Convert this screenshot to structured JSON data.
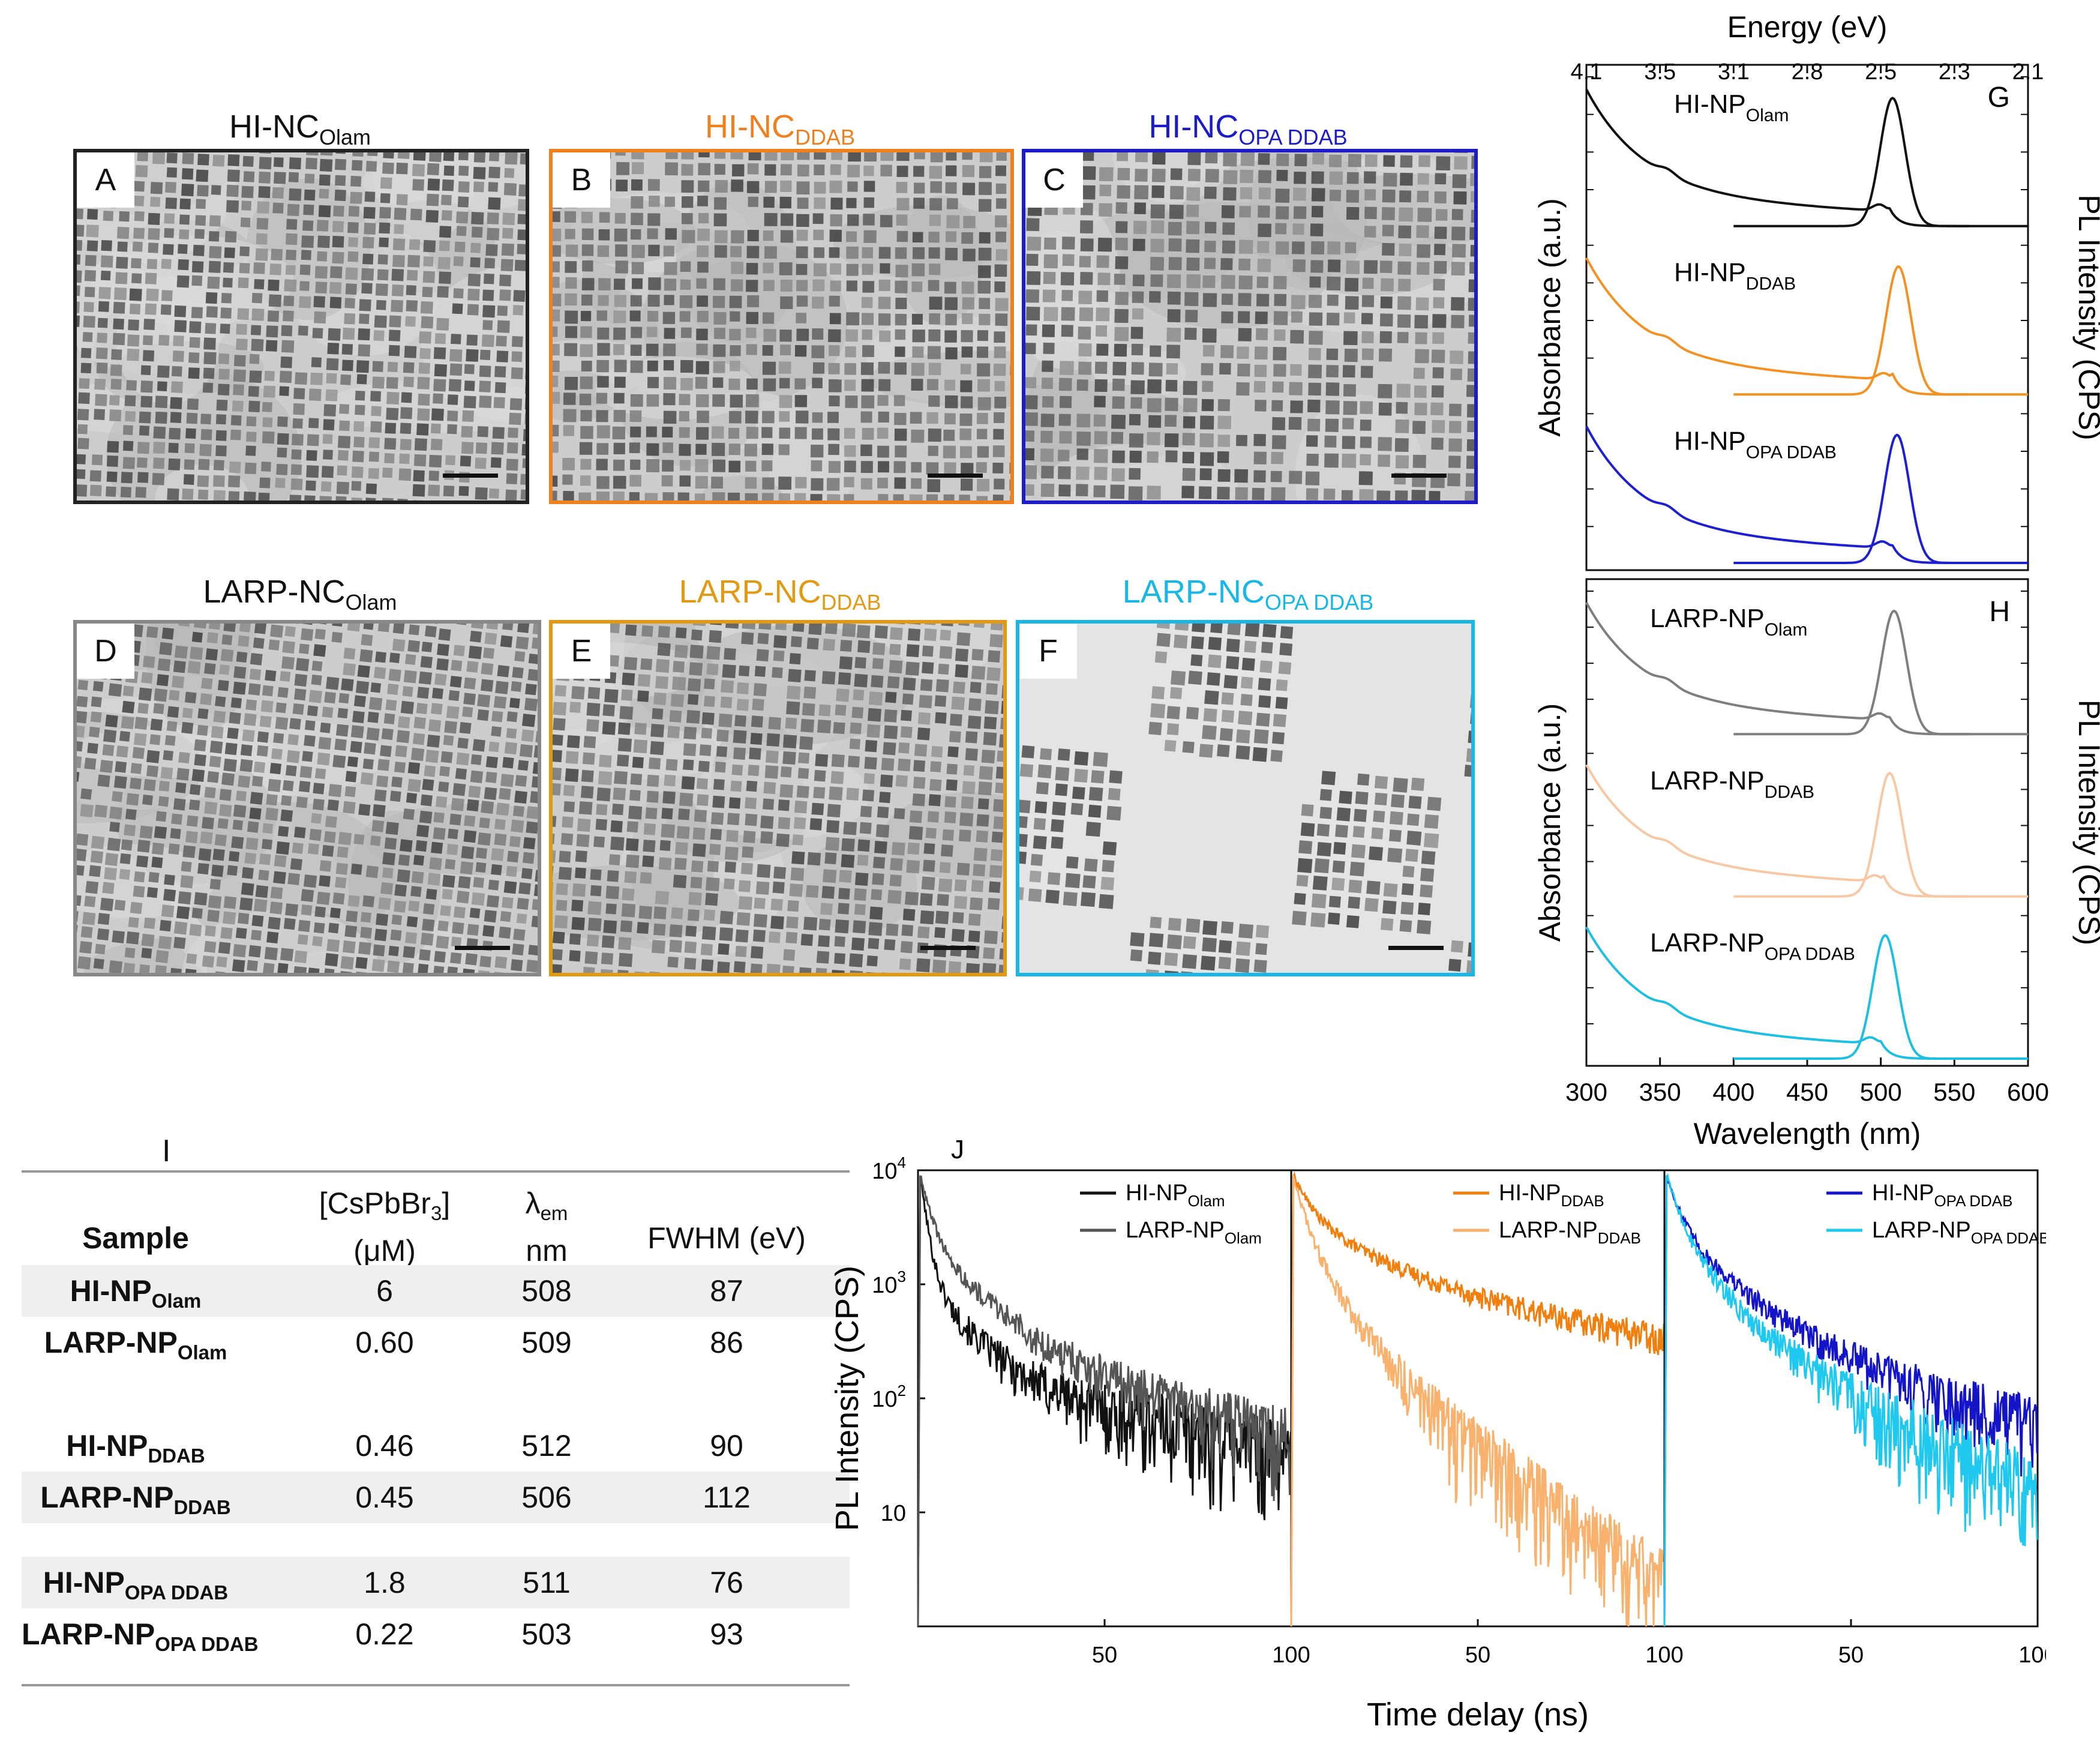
{
  "tem_panels": [
    {
      "label": "A",
      "title_main": "HI-NC",
      "title_sub": "Olam",
      "color": "#222222",
      "seed": 11
    },
    {
      "label": "B",
      "title_main": "HI-NC",
      "title_sub": "DDAB",
      "color": "#f07f1e",
      "seed": 23
    },
    {
      "label": "C",
      "title_main": "HI-NC",
      "title_sub": "OPA DDAB",
      "color": "#1c1cc8",
      "seed": 37
    },
    {
      "label": "D",
      "title_main": "LARP-NC",
      "title_sub": "Olam",
      "color": "#888888",
      "seed": 41
    },
    {
      "label": "E",
      "title_main": "LARP-NC",
      "title_sub": "DDAB",
      "color": "#e29a12",
      "seed": 53
    },
    {
      "label": "F",
      "title_main": "LARP-NC",
      "title_sub": "OPA DDAB",
      "color": "#18b7e6",
      "seed": 67
    }
  ],
  "chart_data": [
    {
      "type": "line",
      "panel": "G",
      "title": "",
      "xlabel": "Wavelength (nm)",
      "x2label": "Energy (eV)",
      "ylabel": "Absorbance (a.u.)",
      "y2label": "PL Intensity (CPS)",
      "xlim": [
        300,
        600
      ],
      "xticks": [
        300,
        350,
        400,
        450,
        500,
        550,
        600
      ],
      "energy_ticks": [
        "4.1",
        "3.5",
        "3.1",
        "2.8",
        "2.5",
        "2.3",
        "2.1"
      ],
      "series": [
        {
          "name_main": "HI-NP",
          "name_sub": "Olam",
          "color": "#111111",
          "pl_peak_nm": 508,
          "abs_edge_nm": 505
        },
        {
          "name_main": "HI-NP",
          "name_sub": "DDAB",
          "color": "#f39222",
          "pl_peak_nm": 512,
          "abs_edge_nm": 508
        },
        {
          "name_main": "HI-NP",
          "name_sub": "OPA DDAB",
          "color": "#1f1fd2",
          "pl_peak_nm": 511,
          "abs_edge_nm": 507
        }
      ]
    },
    {
      "type": "line",
      "panel": "H",
      "title": "",
      "xlabel": "Wavelength (nm)",
      "ylabel": "Absorbance (a.u.)",
      "y2label": "PL Intensity (CPS)",
      "xlim": [
        300,
        600
      ],
      "series": [
        {
          "name_main": "LARP-NP",
          "name_sub": "Olam",
          "color": "#7f7f7f",
          "pl_peak_nm": 509,
          "abs_edge_nm": 505
        },
        {
          "name_main": "LARP-NP",
          "name_sub": "DDAB",
          "color": "#f8c8a4",
          "pl_peak_nm": 506,
          "abs_edge_nm": 502
        },
        {
          "name_main": "LARP-NP",
          "name_sub": "OPA DDAB",
          "color": "#1ebfe0",
          "pl_peak_nm": 503,
          "abs_edge_nm": 499
        }
      ]
    },
    {
      "type": "line",
      "panel": "J",
      "xlabel": "Time delay (ns)",
      "ylabel": "PL Intensity (CPS)",
      "yscale": "log",
      "ylim": [
        1,
        10000
      ],
      "ytick_labels": [
        "10",
        "10",
        "10",
        "10"
      ],
      "ytick_exps": [
        "4",
        "3",
        "2",
        ""
      ],
      "xticks_labels": [
        "50",
        "100"
      ],
      "xlim": [
        0,
        100
      ],
      "subplots": [
        {
          "series": [
            {
              "name_main": "HI-NP",
              "name_sub": "Olam",
              "color": "#111111",
              "tau": [
                1.6,
                9,
                55
              ],
              "amp": [
                0.86,
                0.12,
                0.02
              ],
              "noise_floor": 12
            },
            {
              "name_main": "LARP-NP",
              "name_sub": "Olam",
              "color": "#555555",
              "tau": [
                2.5,
                12,
                45
              ],
              "amp": [
                0.72,
                0.24,
                0.04
              ],
              "noise_floor": 10
            }
          ]
        },
        {
          "series": [
            {
              "name_main": "HI-NP",
              "name_sub": "DDAB",
              "color": "#f07f0e",
              "tau": [
                4,
                18,
                80
              ],
              "amp": [
                0.55,
                0.33,
                0.12
              ],
              "noise_floor": 40
            },
            {
              "name_main": "LARP-NP",
              "name_sub": "DDAB",
              "color": "#f8b26e",
              "tau": [
                2.5,
                7,
                18
              ],
              "amp": [
                0.6,
                0.34,
                0.06
              ],
              "noise_floor": 1
            }
          ]
        },
        {
          "series": [
            {
              "name_main": "HI-NP",
              "name_sub": "OPA DDAB",
              "color": "#1414c8",
              "tau": [
                3,
                12,
                40
              ],
              "amp": [
                0.62,
                0.31,
                0.07
              ],
              "noise_floor": 6
            },
            {
              "name_main": "LARP-NP",
              "name_sub": "OPA DDAB",
              "color": "#1ec8ee",
              "tau": [
                3,
                10,
                30
              ],
              "amp": [
                0.64,
                0.31,
                0.05
              ],
              "noise_floor": 2
            }
          ]
        }
      ]
    }
  ],
  "panel_letters": {
    "G": "G",
    "H": "H",
    "I": "I",
    "J": "J"
  },
  "table": {
    "headers": {
      "sample": "Sample",
      "conc_line1": "[CsPbBr",
      "conc_sub": "3",
      "conc_close": "]",
      "conc_unit": "(μM)",
      "lambda_sym": "λ",
      "lambda_sub": "em",
      "lambda_unit": "nm",
      "fwhm": "FWHM (eV)"
    },
    "rows": [
      {
        "sample_main": "HI-NP",
        "sample_sub": "Olam",
        "conc": "6",
        "lambda": "508",
        "fwhm": "87",
        "shade": true
      },
      {
        "sample_main": "LARP-NP",
        "sample_sub": "Olam",
        "conc": "0.60",
        "lambda": "509",
        "fwhm": "86",
        "shade": false
      },
      {
        "sample_main": "HI-NP",
        "sample_sub": "DDAB",
        "conc": "0.46",
        "lambda": "512",
        "fwhm": "90",
        "shade": false
      },
      {
        "sample_main": "LARP-NP",
        "sample_sub": "DDAB",
        "conc": "0.45",
        "lambda": "506",
        "fwhm": "112",
        "shade": true
      },
      {
        "sample_main": "HI-NP",
        "sample_sub": "OPA DDAB",
        "conc": "1.8",
        "lambda": "511",
        "fwhm": "76",
        "shade": true
      },
      {
        "sample_main": "LARP-NP",
        "sample_sub": "OPA DDAB",
        "conc": "0.22",
        "lambda": "503",
        "fwhm": "93",
        "shade": false
      }
    ]
  }
}
